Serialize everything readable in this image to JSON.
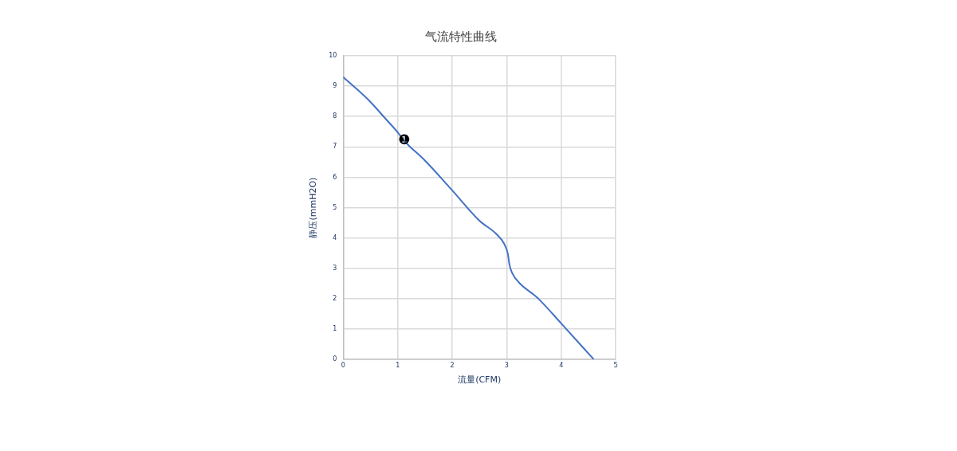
{
  "chart_data": {
    "type": "line",
    "title": "气流特性曲线",
    "xlabel": "流量(CFM)",
    "ylabel": "静压(mmH2O)",
    "x": [
      0,
      0.5,
      0.75,
      1,
      1.12,
      1.5,
      2,
      2.5,
      2.8,
      2.95,
      3.02,
      3.05,
      3.1,
      3.25,
      3.5,
      3.6,
      4,
      4.6
    ],
    "series": [
      {
        "color": "#4472c4",
        "values": [
          9.3,
          8.48,
          7.98,
          7.48,
          7.2,
          6.55,
          5.57,
          4.57,
          4.15,
          3.82,
          3.49,
          3.13,
          2.85,
          2.49,
          2.13,
          1.97,
          1.19,
          0
        ]
      }
    ],
    "xlim": [
      0,
      5
    ],
    "xticks": [
      0,
      1,
      2,
      3,
      4,
      5
    ],
    "ylim": [
      0,
      10
    ],
    "yticks": [
      0,
      1,
      2,
      3,
      4,
      5,
      6,
      7,
      8,
      9,
      10
    ],
    "grid": true,
    "legend": false,
    "marker": "none",
    "line_style": "solid",
    "annotations": [
      {
        "text": "❶",
        "x": 1.12,
        "y": 7.2
      }
    ]
  }
}
